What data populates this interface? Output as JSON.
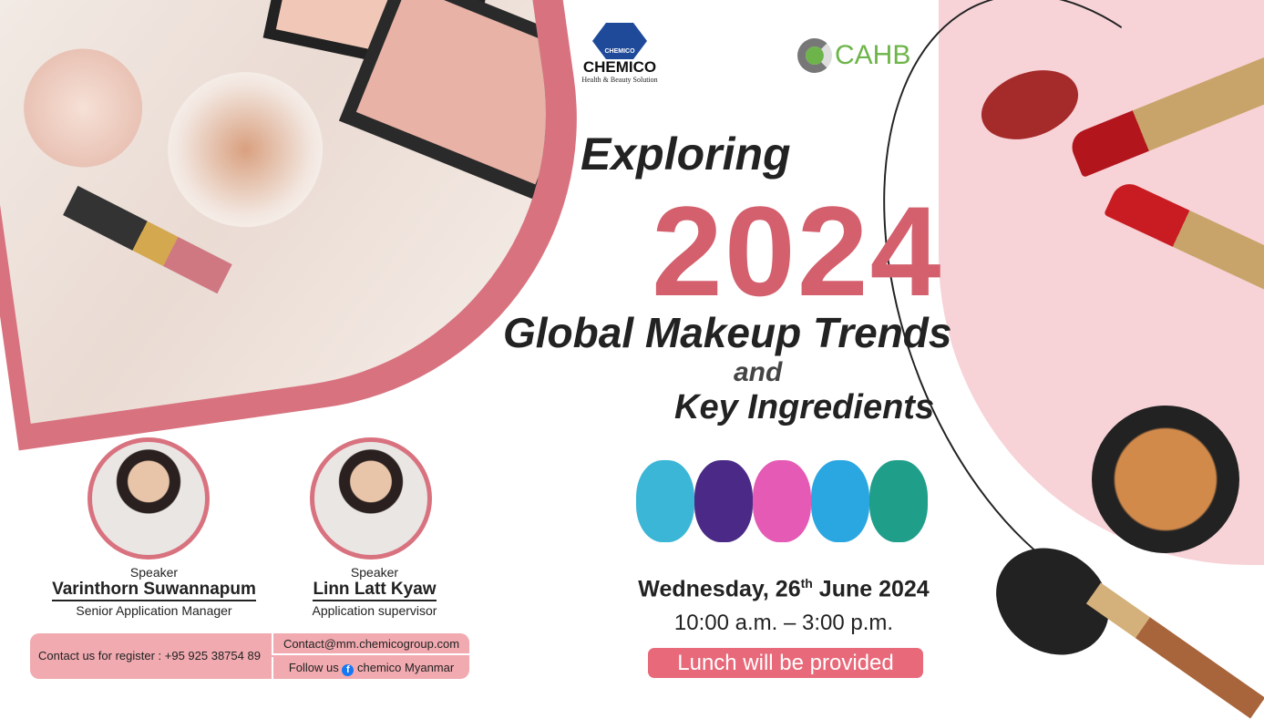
{
  "logos": {
    "chemico_name": "CHEMICO",
    "chemico_tagline": "Health & Beauty Solution",
    "chemico_badge": "CHEMICO",
    "cahb": "CAHB"
  },
  "title": {
    "line1": "Exploring",
    "year": "2024",
    "line2": "Global Makeup Trends",
    "line3": "and",
    "line4": "Key Ingredients"
  },
  "event": {
    "date_pre": "Wednesday, 26",
    "date_sup": "th",
    "date_post": " June 2024",
    "time": "10:00 a.m. – 3:00 p.m.",
    "lunch": "Lunch will be provided"
  },
  "speakers": [
    {
      "role": "Speaker",
      "name": "Varinthorn Suwannapum",
      "title": "Senior Application Manager"
    },
    {
      "role": "Speaker",
      "name": "Linn Latt Kyaw",
      "title": "Application supervisor"
    }
  ],
  "contact": {
    "register": "Contact us for register : +95 925 38754 89",
    "email": "Contact@mm.chemicogroup.com",
    "follow_pre": "Follow us",
    "follow_post": "chemico Myanmar"
  },
  "colors": {
    "accent": "#d4606e",
    "contact_bg": "#f0aab0",
    "lunch_bg": "#e8697a"
  }
}
